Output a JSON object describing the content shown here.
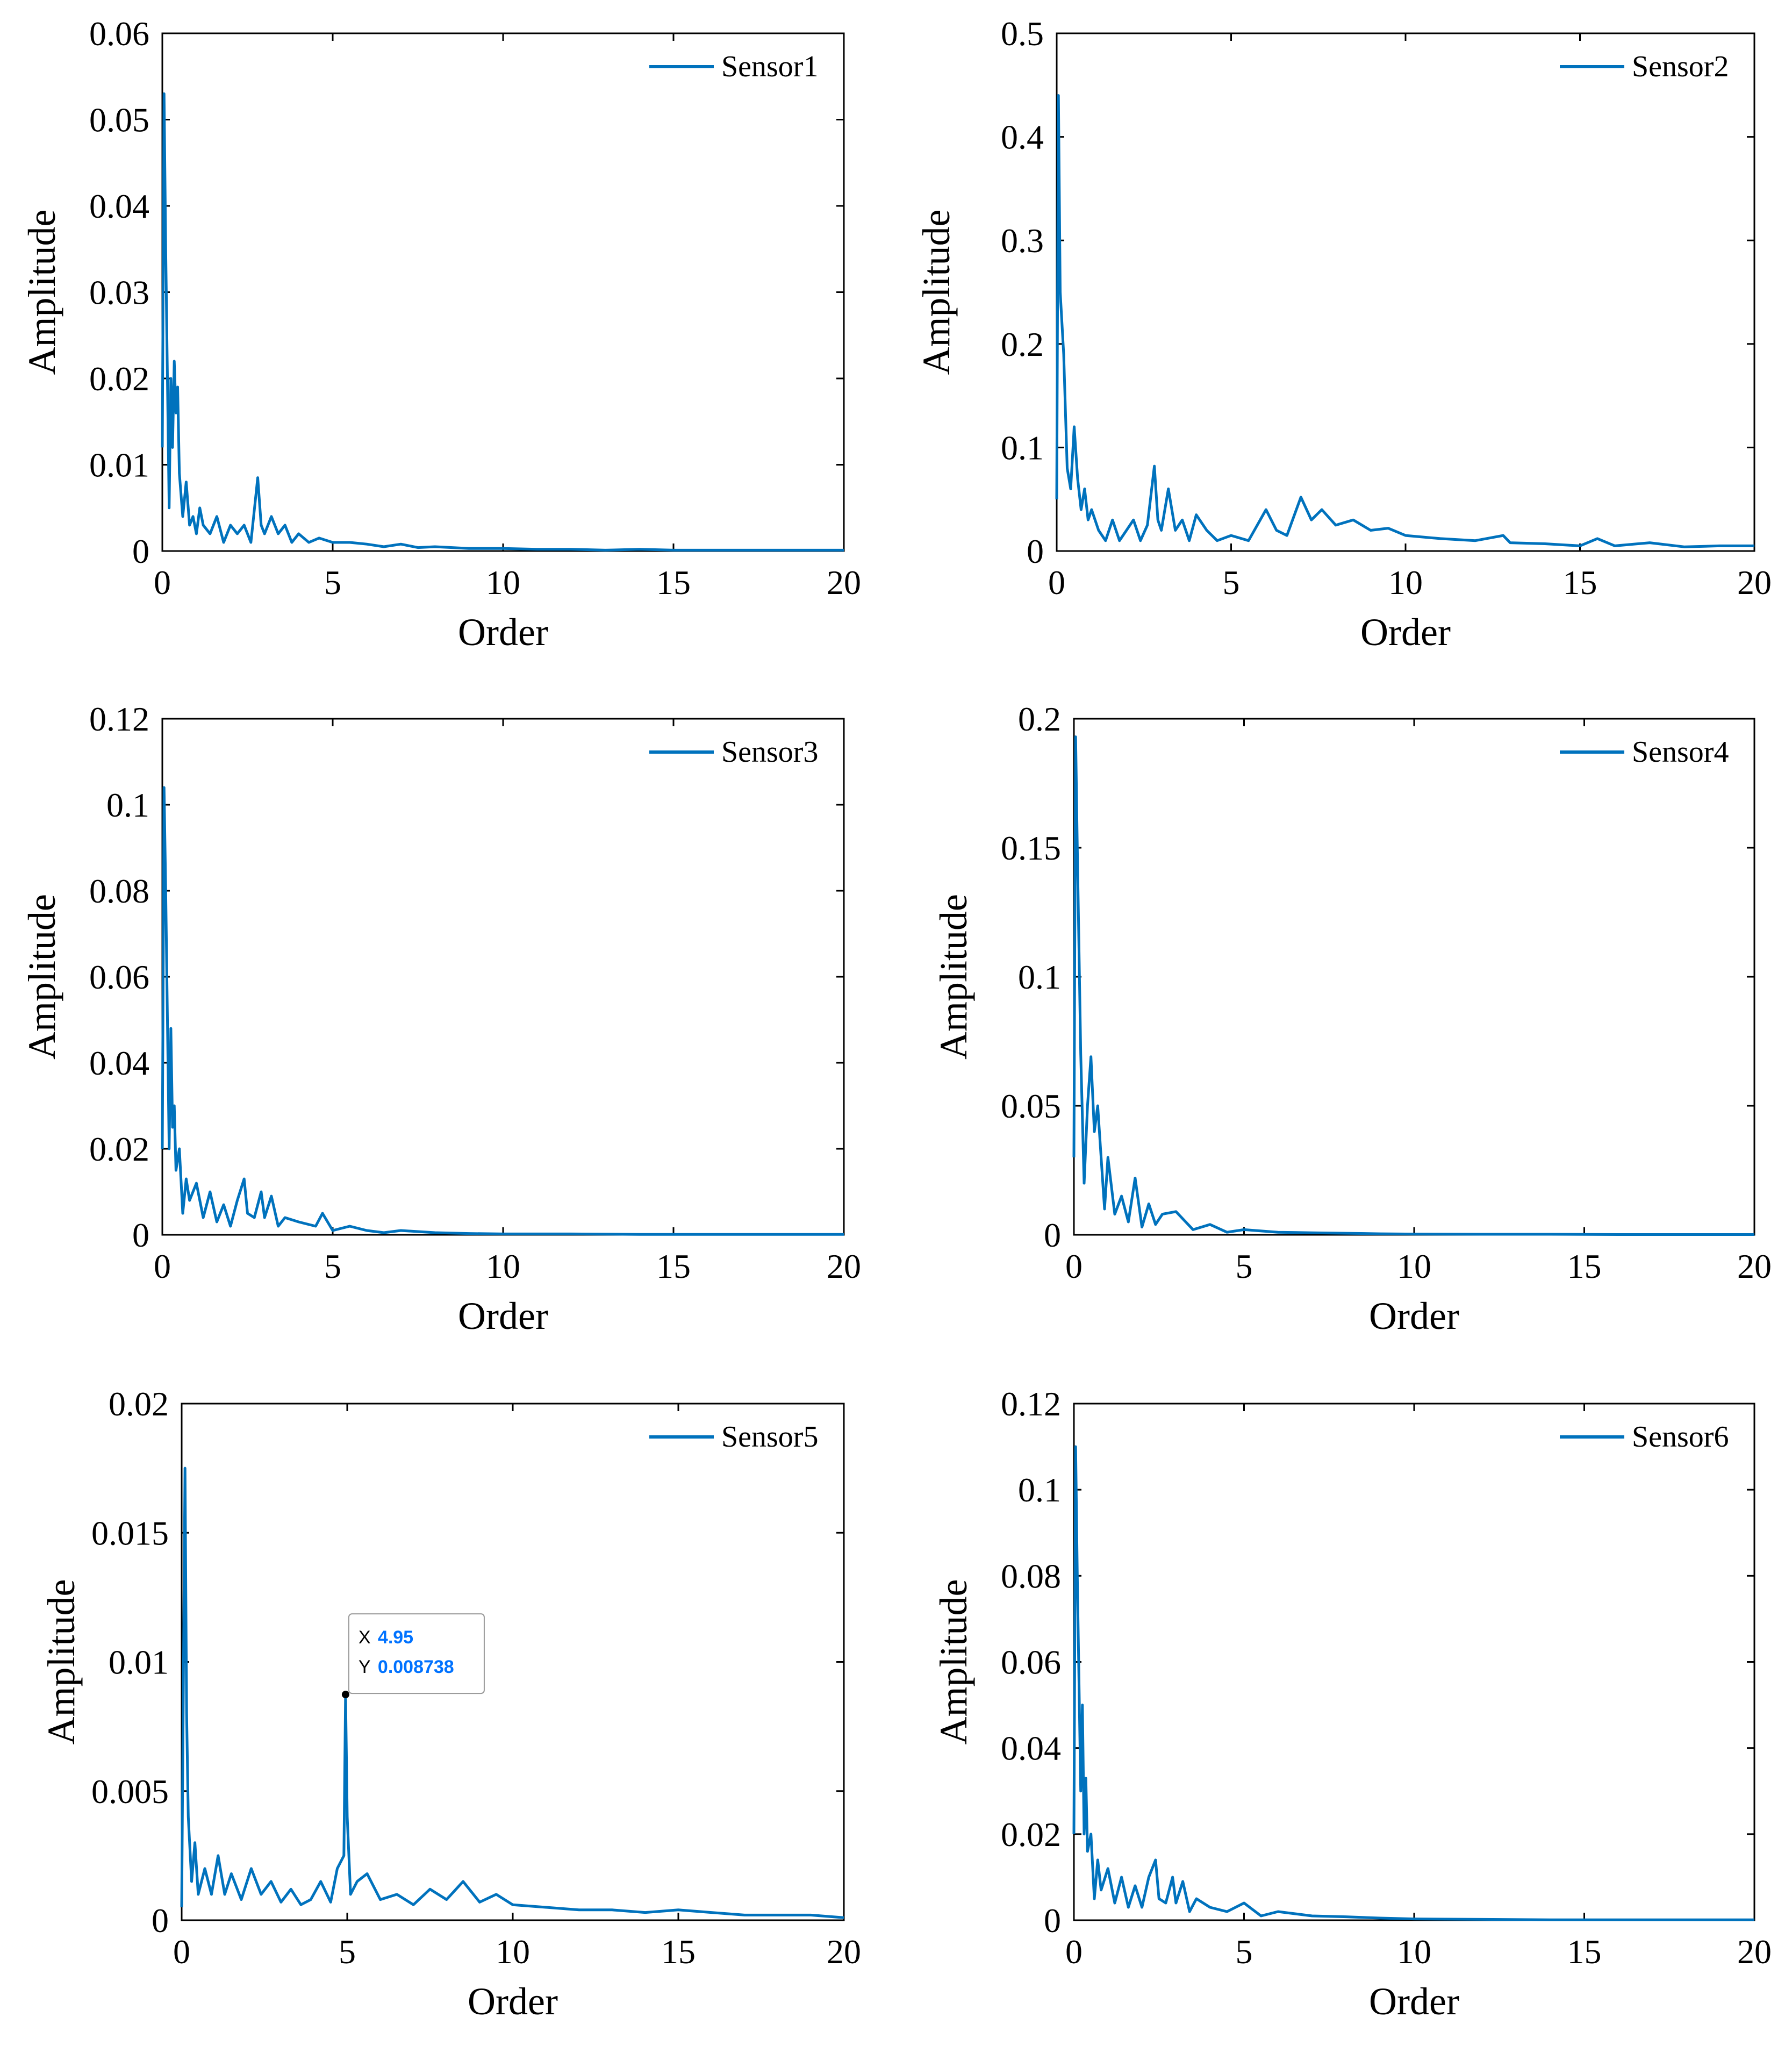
{
  "colors": {
    "line": "#0072BD",
    "axis": "#000000",
    "tooltip_value": "#0072FF",
    "tooltip_border": "#999999",
    "marker": "#000000"
  },
  "chart_data": [
    {
      "type": "line",
      "title": "",
      "xlabel": "Order",
      "ylabel": "Amplitude",
      "xlim": [
        0,
        20
      ],
      "ylim": [
        0,
        0.06
      ],
      "xticks": [
        0,
        5,
        10,
        15,
        20
      ],
      "xtick_labels": [
        "0",
        "5",
        "10",
        "15",
        "20"
      ],
      "yticks": [
        0,
        0.01,
        0.02,
        0.03,
        0.04,
        0.05,
        0.06
      ],
      "ytick_labels": [
        "0",
        "0.01",
        "0.02",
        "0.03",
        "0.04",
        "0.05",
        "0.06"
      ],
      "legend": "top-right",
      "series": [
        {
          "name": "Sensor1",
          "x": [
            0,
            0.05,
            0.1,
            0.2,
            0.25,
            0.3,
            0.35,
            0.4,
            0.45,
            0.5,
            0.6,
            0.7,
            0.8,
            0.9,
            1.0,
            1.1,
            1.2,
            1.4,
            1.6,
            1.8,
            2.0,
            2.2,
            2.4,
            2.6,
            2.8,
            2.9,
            3.0,
            3.2,
            3.4,
            3.6,
            3.8,
            4.0,
            4.3,
            4.6,
            5.0,
            5.5,
            6.0,
            6.5,
            7.0,
            7.5,
            8.0,
            9.0,
            10,
            11,
            12,
            13,
            14,
            15,
            16,
            17,
            18,
            19,
            20
          ],
          "y": [
            0.012,
            0.053,
            0.035,
            0.005,
            0.02,
            0.012,
            0.022,
            0.016,
            0.019,
            0.009,
            0.004,
            0.008,
            0.003,
            0.004,
            0.002,
            0.005,
            0.003,
            0.002,
            0.004,
            0.001,
            0.003,
            0.002,
            0.003,
            0.001,
            0.0085,
            0.003,
            0.002,
            0.004,
            0.002,
            0.003,
            0.001,
            0.002,
            0.001,
            0.0015,
            0.001,
            0.001,
            0.0008,
            0.0005,
            0.0008,
            0.0004,
            0.0005,
            0.0003,
            0.0003,
            0.0002,
            0.0002,
            0.0001,
            0.0002,
            0.0001,
            0.0001,
            0.0001,
            0.0001,
            0.0001,
            0.0001
          ]
        }
      ]
    },
    {
      "type": "line",
      "title": "",
      "xlabel": "Order",
      "ylabel": "Amplitude",
      "xlim": [
        0,
        20
      ],
      "ylim": [
        0,
        0.5
      ],
      "xticks": [
        0,
        5,
        10,
        15,
        20
      ],
      "xtick_labels": [
        "0",
        "5",
        "10",
        "15",
        "20"
      ],
      "yticks": [
        0,
        0.1,
        0.2,
        0.3,
        0.4,
        0.5
      ],
      "ytick_labels": [
        "0",
        "0.1",
        "0.2",
        "0.3",
        "0.4",
        "0.5"
      ],
      "legend": "top-right",
      "series": [
        {
          "name": "Sensor2",
          "x": [
            0,
            0.05,
            0.1,
            0.2,
            0.3,
            0.4,
            0.5,
            0.6,
            0.7,
            0.8,
            0.9,
            1.0,
            1.2,
            1.4,
            1.6,
            1.8,
            2.0,
            2.2,
            2.4,
            2.6,
            2.8,
            2.9,
            3.0,
            3.2,
            3.4,
            3.6,
            3.8,
            4.0,
            4.3,
            4.6,
            5.0,
            5.5,
            6.0,
            6.3,
            6.6,
            7.0,
            7.3,
            7.6,
            8.0,
            8.5,
            9.0,
            9.5,
            10,
            11,
            12,
            12.8,
            13,
            14,
            15,
            15.5,
            16,
            17,
            18,
            19,
            20
          ],
          "y": [
            0.05,
            0.44,
            0.25,
            0.19,
            0.08,
            0.06,
            0.12,
            0.07,
            0.04,
            0.06,
            0.03,
            0.04,
            0.02,
            0.01,
            0.03,
            0.01,
            0.02,
            0.03,
            0.01,
            0.025,
            0.082,
            0.03,
            0.02,
            0.06,
            0.02,
            0.03,
            0.01,
            0.035,
            0.02,
            0.01,
            0.015,
            0.01,
            0.04,
            0.02,
            0.015,
            0.052,
            0.03,
            0.04,
            0.025,
            0.03,
            0.02,
            0.022,
            0.015,
            0.012,
            0.01,
            0.015,
            0.008,
            0.007,
            0.005,
            0.012,
            0.005,
            0.008,
            0.004,
            0.005,
            0.005
          ]
        }
      ]
    },
    {
      "type": "line",
      "title": "",
      "xlabel": "Order",
      "ylabel": "Amplitude",
      "xlim": [
        0,
        20
      ],
      "ylim": [
        0,
        0.12
      ],
      "xticks": [
        0,
        5,
        10,
        15,
        20
      ],
      "xtick_labels": [
        "0",
        "5",
        "10",
        "15",
        "20"
      ],
      "yticks": [
        0,
        0.02,
        0.04,
        0.06,
        0.08,
        0.1,
        0.12
      ],
      "ytick_labels": [
        "0",
        "0.02",
        "0.04",
        "0.06",
        "0.08",
        "0.1",
        "0.12"
      ],
      "legend": "top-right",
      "series": [
        {
          "name": "Sensor3",
          "x": [
            0,
            0.05,
            0.1,
            0.2,
            0.25,
            0.3,
            0.35,
            0.4,
            0.5,
            0.6,
            0.7,
            0.8,
            1.0,
            1.2,
            1.4,
            1.6,
            1.8,
            2.0,
            2.2,
            2.4,
            2.5,
            2.7,
            2.9,
            3.0,
            3.2,
            3.4,
            3.6,
            4.0,
            4.5,
            4.7,
            5.0,
            5.5,
            6.0,
            6.5,
            7.0,
            8.0,
            9.0,
            10,
            12,
            14,
            16,
            18,
            20
          ],
          "y": [
            0.02,
            0.104,
            0.08,
            0.02,
            0.048,
            0.025,
            0.03,
            0.015,
            0.02,
            0.005,
            0.013,
            0.008,
            0.012,
            0.004,
            0.01,
            0.003,
            0.007,
            0.002,
            0.008,
            0.013,
            0.005,
            0.004,
            0.01,
            0.004,
            0.009,
            0.002,
            0.004,
            0.003,
            0.002,
            0.005,
            0.001,
            0.002,
            0.001,
            0.0005,
            0.001,
            0.0005,
            0.0003,
            0.0002,
            0.0002,
            0.0001,
            0.0001,
            0.0001,
            0.0001
          ]
        }
      ]
    },
    {
      "type": "line",
      "title": "",
      "xlabel": "Order",
      "ylabel": "Amplitude",
      "xlim": [
        0,
        20
      ],
      "ylim": [
        0,
        0.2
      ],
      "xticks": [
        0,
        5,
        10,
        15,
        20
      ],
      "xtick_labels": [
        "0",
        "5",
        "10",
        "15",
        "20"
      ],
      "yticks": [
        0,
        0.05,
        0.1,
        0.15,
        0.2
      ],
      "ytick_labels": [
        "0",
        "0.05",
        "0.1",
        "0.15",
        "0.2"
      ],
      "legend": "top-right",
      "series": [
        {
          "name": "Sensor4",
          "x": [
            0,
            0.05,
            0.1,
            0.2,
            0.3,
            0.4,
            0.5,
            0.6,
            0.7,
            0.8,
            0.9,
            1.0,
            1.2,
            1.4,
            1.6,
            1.8,
            2.0,
            2.2,
            2.4,
            2.6,
            3.0,
            3.5,
            4.0,
            4.5,
            5.0,
            6.0,
            7.0,
            8.0,
            9.0,
            10,
            12,
            14,
            16,
            18,
            20
          ],
          "y": [
            0.03,
            0.193,
            0.15,
            0.07,
            0.02,
            0.05,
            0.069,
            0.04,
            0.05,
            0.03,
            0.01,
            0.03,
            0.008,
            0.015,
            0.005,
            0.022,
            0.003,
            0.012,
            0.004,
            0.008,
            0.009,
            0.002,
            0.004,
            0.001,
            0.002,
            0.001,
            0.0008,
            0.0006,
            0.0004,
            0.0003,
            0.0002,
            0.0002,
            0.0001,
            0.0001,
            0.0001
          ]
        }
      ]
    },
    {
      "type": "line",
      "title": "",
      "xlabel": "Order",
      "ylabel": "Amplitude",
      "xlim": [
        0,
        20
      ],
      "ylim": [
        0,
        0.02
      ],
      "xticks": [
        0,
        5,
        10,
        15,
        20
      ],
      "xtick_labels": [
        "0",
        "5",
        "10",
        "15",
        "20"
      ],
      "yticks": [
        0,
        0.005,
        0.01,
        0.015,
        0.02
      ],
      "ytick_labels": [
        "0",
        "0.005",
        "0.01",
        "0.015",
        "0.02"
      ],
      "legend": "top-right",
      "series": [
        {
          "name": "Sensor5",
          "x": [
            0,
            0.1,
            0.15,
            0.2,
            0.3,
            0.4,
            0.5,
            0.7,
            0.9,
            1.1,
            1.3,
            1.5,
            1.8,
            2.1,
            2.4,
            2.7,
            3.0,
            3.3,
            3.6,
            3.9,
            4.2,
            4.5,
            4.7,
            4.9,
            4.95,
            5.0,
            5.1,
            5.3,
            5.6,
            6.0,
            6.5,
            7.0,
            7.5,
            8.0,
            8.5,
            9.0,
            9.5,
            10,
            11,
            12,
            13,
            14,
            15,
            16,
            17,
            18,
            19,
            20
          ],
          "y": [
            0.0005,
            0.0175,
            0.008,
            0.004,
            0.0015,
            0.003,
            0.001,
            0.002,
            0.001,
            0.0025,
            0.001,
            0.0018,
            0.0008,
            0.002,
            0.001,
            0.0015,
            0.0007,
            0.0012,
            0.0006,
            0.0008,
            0.0015,
            0.0007,
            0.002,
            0.0025,
            0.008738,
            0.004,
            0.001,
            0.0015,
            0.0018,
            0.0008,
            0.001,
            0.0006,
            0.0012,
            0.0008,
            0.0015,
            0.0007,
            0.001,
            0.0006,
            0.0005,
            0.0004,
            0.0004,
            0.0003,
            0.0004,
            0.0003,
            0.0002,
            0.0002,
            0.0002,
            0.0001
          ]
        }
      ]
    },
    {
      "type": "line",
      "title": "",
      "xlabel": "Order",
      "ylabel": "Amplitude",
      "xlim": [
        0,
        20
      ],
      "ylim": [
        0,
        0.12
      ],
      "xticks": [
        0,
        5,
        10,
        15,
        20
      ],
      "xtick_labels": [
        "0",
        "5",
        "10",
        "15",
        "20"
      ],
      "yticks": [
        0,
        0.02,
        0.04,
        0.06,
        0.08,
        0.1,
        0.12
      ],
      "ytick_labels": [
        "0",
        "0.02",
        "0.04",
        "0.06",
        "0.08",
        "0.1",
        "0.12"
      ],
      "legend": "top-right",
      "series": [
        {
          "name": "Sensor6",
          "x": [
            0,
            0.05,
            0.1,
            0.2,
            0.25,
            0.3,
            0.35,
            0.4,
            0.5,
            0.6,
            0.7,
            0.8,
            1.0,
            1.2,
            1.4,
            1.6,
            1.8,
            2.0,
            2.2,
            2.4,
            2.5,
            2.7,
            2.9,
            3.0,
            3.2,
            3.4,
            3.6,
            4.0,
            4.5,
            5.0,
            5.5,
            6.0,
            7.0,
            8.0,
            9.0,
            10,
            12,
            14,
            16,
            18,
            20
          ],
          "y": [
            0.02,
            0.11,
            0.08,
            0.03,
            0.05,
            0.02,
            0.033,
            0.016,
            0.02,
            0.005,
            0.014,
            0.007,
            0.012,
            0.004,
            0.01,
            0.003,
            0.008,
            0.003,
            0.01,
            0.014,
            0.005,
            0.004,
            0.01,
            0.004,
            0.009,
            0.002,
            0.005,
            0.003,
            0.002,
            0.004,
            0.001,
            0.002,
            0.001,
            0.0008,
            0.0005,
            0.0003,
            0.0002,
            0.0001,
            0.0001,
            0.0001,
            0.0001
          ]
        }
      ]
    }
  ],
  "datatip": {
    "x_label": "X",
    "x_value": "4.95",
    "y_label": "Y",
    "y_value": "0.008738",
    "x": 4.95,
    "y": 0.008738
  }
}
